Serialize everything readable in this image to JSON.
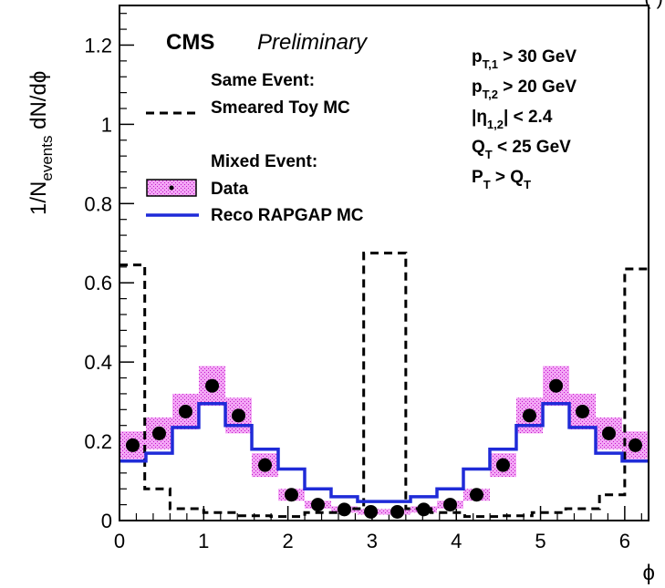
{
  "chart_data": {
    "type": "histogram",
    "xlabel": "ϕ",
    "ylabel": "1/N",
    "ylabel_sub": "events",
    "ylabel_tail": " dN/dϕ",
    "xlim": [
      0,
      6.2832
    ],
    "ylim": [
      0,
      1.3
    ],
    "x_ticks": [
      0,
      1,
      2,
      3,
      4,
      5,
      6
    ],
    "y_ticks": [
      0,
      0.2,
      0.4,
      0.6,
      0.8,
      1,
      1.2
    ],
    "x_tick_labels": [
      "0",
      "1",
      "2",
      "3",
      "4",
      "5",
      "6"
    ],
    "y_tick_labels": [
      "0",
      "0.2",
      "0.4",
      "0.6",
      "0.8",
      "1",
      "1.2"
    ],
    "header": {
      "cms": "CMS",
      "preliminary": "Preliminary",
      "clipped_corner": "(         )"
    },
    "legend": {
      "same_event_heading": "Same Event:",
      "toy_mc": "Smeared Toy MC",
      "mixed_event_heading": "Mixed Event:",
      "data": "Data",
      "reco_mc": "Reco RAPGAP MC"
    },
    "cuts": [
      {
        "main": "p",
        "sub": "T,1",
        "rest": " > 30 GeV"
      },
      {
        "main": "p",
        "sub": "T,2",
        "rest": " > 20 GeV"
      },
      {
        "main": "|η",
        "sub": "1,2",
        "rest": "| < 2.4"
      },
      {
        "main": "Q",
        "sub": "T",
        "rest": " < 25 GeV"
      },
      {
        "main": "P",
        "sub": "T",
        "rest": " > Q",
        "tail_sub": "T"
      }
    ],
    "series": [
      {
        "name": "Smeared Toy MC",
        "kind": "step",
        "style": "dashed",
        "color": "#000000",
        "bin_edges": [
          0,
          0.3,
          0.6,
          1.0,
          1.4,
          1.8,
          2.2,
          2.6,
          2.9,
          3.4,
          3.7,
          4.1,
          4.5,
          4.9,
          5.3,
          5.7,
          6.0,
          6.2832
        ],
        "values": [
          0.645,
          0.08,
          0.03,
          0.02,
          0.012,
          0.01,
          0.02,
          0.03,
          0.675,
          0.03,
          0.02,
          0.01,
          0.012,
          0.02,
          0.03,
          0.065,
          0.635
        ]
      },
      {
        "name": "Reco RAPGAP MC",
        "kind": "step",
        "style": "solid",
        "color": "#1f2bd8",
        "bin_edges": [
          0,
          0.314,
          0.628,
          0.942,
          1.257,
          1.571,
          1.885,
          2.199,
          2.513,
          2.827,
          3.142,
          3.456,
          3.77,
          4.084,
          4.398,
          4.712,
          5.027,
          5.341,
          5.655,
          5.969,
          6.2832
        ],
        "values": [
          0.15,
          0.17,
          0.235,
          0.295,
          0.24,
          0.18,
          0.13,
          0.08,
          0.06,
          0.048,
          0.048,
          0.06,
          0.08,
          0.13,
          0.18,
          0.24,
          0.295,
          0.235,
          0.17,
          0.15
        ]
      },
      {
        "name": "Data",
        "kind": "points_with_band",
        "color": "#000000",
        "band_color": "#e23be6",
        "x": [
          0.157,
          0.471,
          0.785,
          1.1,
          1.414,
          1.728,
          2.042,
          2.356,
          2.67,
          2.985,
          3.299,
          3.613,
          3.927,
          4.241,
          4.555,
          4.869,
          5.184,
          5.498,
          5.812,
          6.126
        ],
        "y": [
          0.19,
          0.22,
          0.275,
          0.34,
          0.265,
          0.14,
          0.065,
          0.04,
          0.028,
          0.022,
          0.022,
          0.028,
          0.04,
          0.065,
          0.14,
          0.265,
          0.34,
          0.275,
          0.22,
          0.19
        ],
        "band": [
          0.035,
          0.04,
          0.045,
          0.05,
          0.045,
          0.03,
          0.015,
          0.01,
          0.008,
          0.007,
          0.007,
          0.008,
          0.01,
          0.015,
          0.03,
          0.045,
          0.05,
          0.045,
          0.04,
          0.035
        ]
      }
    ]
  }
}
